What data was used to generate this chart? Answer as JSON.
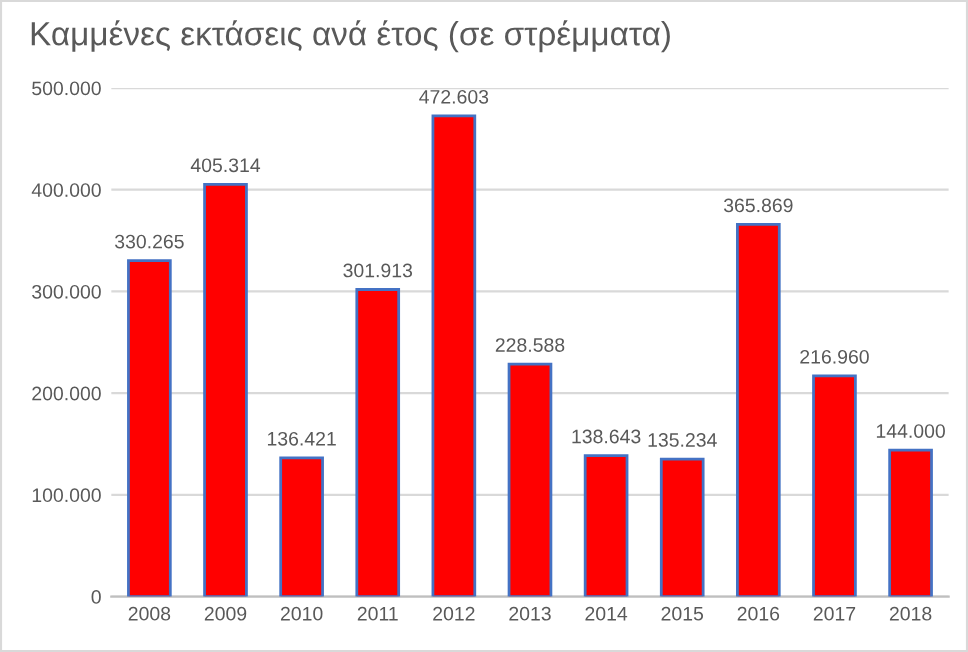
{
  "chart_data": {
    "type": "bar",
    "title": "Καμμένες εκτάσεις ανά έτος (σε στρέμματα)",
    "categories": [
      "2008",
      "2009",
      "2010",
      "2011",
      "2012",
      "2013",
      "2014",
      "2015",
      "2016",
      "2017",
      "2018"
    ],
    "values": [
      330265,
      405314,
      136421,
      301913,
      472603,
      228588,
      138643,
      135234,
      365869,
      216960,
      144000
    ],
    "value_labels": [
      "330.265",
      "405.314",
      "136.421",
      "301.913",
      "472.603",
      "228.588",
      "138.643",
      "135.234",
      "365.869",
      "216.960",
      "144.000"
    ],
    "color": "#ff0000",
    "ylim": [
      0,
      500000
    ],
    "yticks": [
      {
        "value": 0,
        "label": "0"
      },
      {
        "value": 100000,
        "label": "100.000"
      },
      {
        "value": 200000,
        "label": "200.000"
      },
      {
        "value": 300000,
        "label": "300.000"
      },
      {
        "value": 400000,
        "label": "400.000"
      },
      {
        "value": 500000,
        "label": "500.000"
      }
    ],
    "grid": "y"
  }
}
